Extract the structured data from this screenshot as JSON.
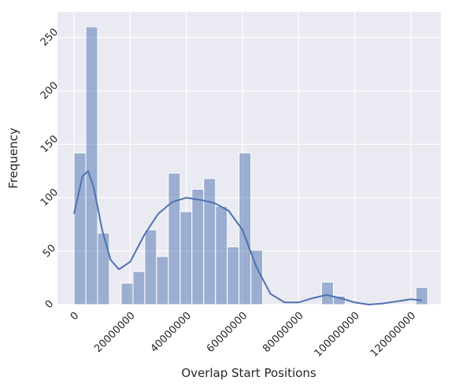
{
  "chart_data": {
    "type": "histogram",
    "xlabel": "Overlap Start Positions",
    "ylabel": "Frequency",
    "bins": [
      0,
      4200000,
      8400000,
      12600000,
      16800000,
      21000000,
      25200000,
      29400000,
      33600000,
      37800000,
      42000000,
      46200000,
      50400000,
      54600000,
      58800000,
      63000000,
      67200000,
      71400000,
      75600000,
      79800000,
      84000000,
      88200000,
      92400000,
      96600000,
      100800000,
      105000000,
      109200000,
      113400000,
      117600000,
      121800000,
      126000000
    ],
    "values": [
      142,
      260,
      67,
      0,
      20,
      31,
      70,
      45,
      123,
      87,
      108,
      118,
      92,
      54,
      142,
      51,
      0,
      0,
      0,
      0,
      0,
      21,
      8,
      0,
      0,
      0,
      0,
      0,
      0,
      16
    ],
    "color": "#4c72b0",
    "kde": {
      "x": [
        0,
        3000000,
        5000000,
        7000000,
        10000000,
        13000000,
        16000000,
        20000000,
        25000000,
        30000000,
        35000000,
        40000000,
        45000000,
        50000000,
        55000000,
        60000000,
        65000000,
        70000000,
        75000000,
        80000000,
        85000000,
        90000000,
        95000000,
        100000000,
        105000000,
        110000000,
        115000000,
        120000000,
        124000000
      ],
      "values": [
        85,
        120,
        125,
        110,
        70,
        42,
        33,
        40,
        65,
        85,
        96,
        100,
        98,
        95,
        88,
        70,
        35,
        10,
        2,
        2,
        6,
        9,
        6,
        2,
        0,
        1,
        3,
        5,
        4
      ]
    },
    "xlim": [
      -5900000,
      130700000
    ],
    "ylim": [
      0,
      274
    ],
    "xticks": [
      0,
      20000000,
      40000000,
      60000000,
      80000000,
      100000000,
      120000000
    ],
    "yticks": [
      0,
      50,
      100,
      150,
      200,
      250
    ],
    "grid": true
  }
}
